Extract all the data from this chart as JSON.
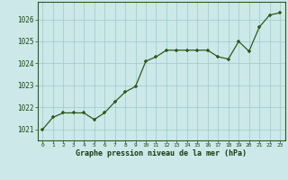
{
  "x": [
    0,
    1,
    2,
    3,
    4,
    5,
    6,
    7,
    8,
    9,
    10,
    11,
    12,
    13,
    14,
    15,
    16,
    17,
    18,
    19,
    20,
    21,
    22,
    23
  ],
  "y": [
    1021.0,
    1021.55,
    1021.75,
    1021.75,
    1021.75,
    1021.45,
    1021.75,
    1022.25,
    1022.7,
    1022.95,
    1024.1,
    1024.3,
    1024.6,
    1024.6,
    1024.6,
    1024.6,
    1024.6,
    1024.3,
    1024.2,
    1025.0,
    1024.55,
    1025.65,
    1026.2,
    1026.3
  ],
  "line_color": "#2d5a1b",
  "marker_color": "#2d5a1b",
  "bg_color": "#cce8e8",
  "grid_color": "#99cccc",
  "xlabel": "Graphe pression niveau de la mer (hPa)",
  "xlabel_color": "#1a3a10",
  "ylim": [
    1020.5,
    1026.8
  ],
  "yticks": [
    1021,
    1022,
    1023,
    1024,
    1025,
    1026
  ],
  "tick_color": "#1a4a10",
  "axis_color": "#2d5a1b",
  "bottom_bar_color": "#3a6b20"
}
